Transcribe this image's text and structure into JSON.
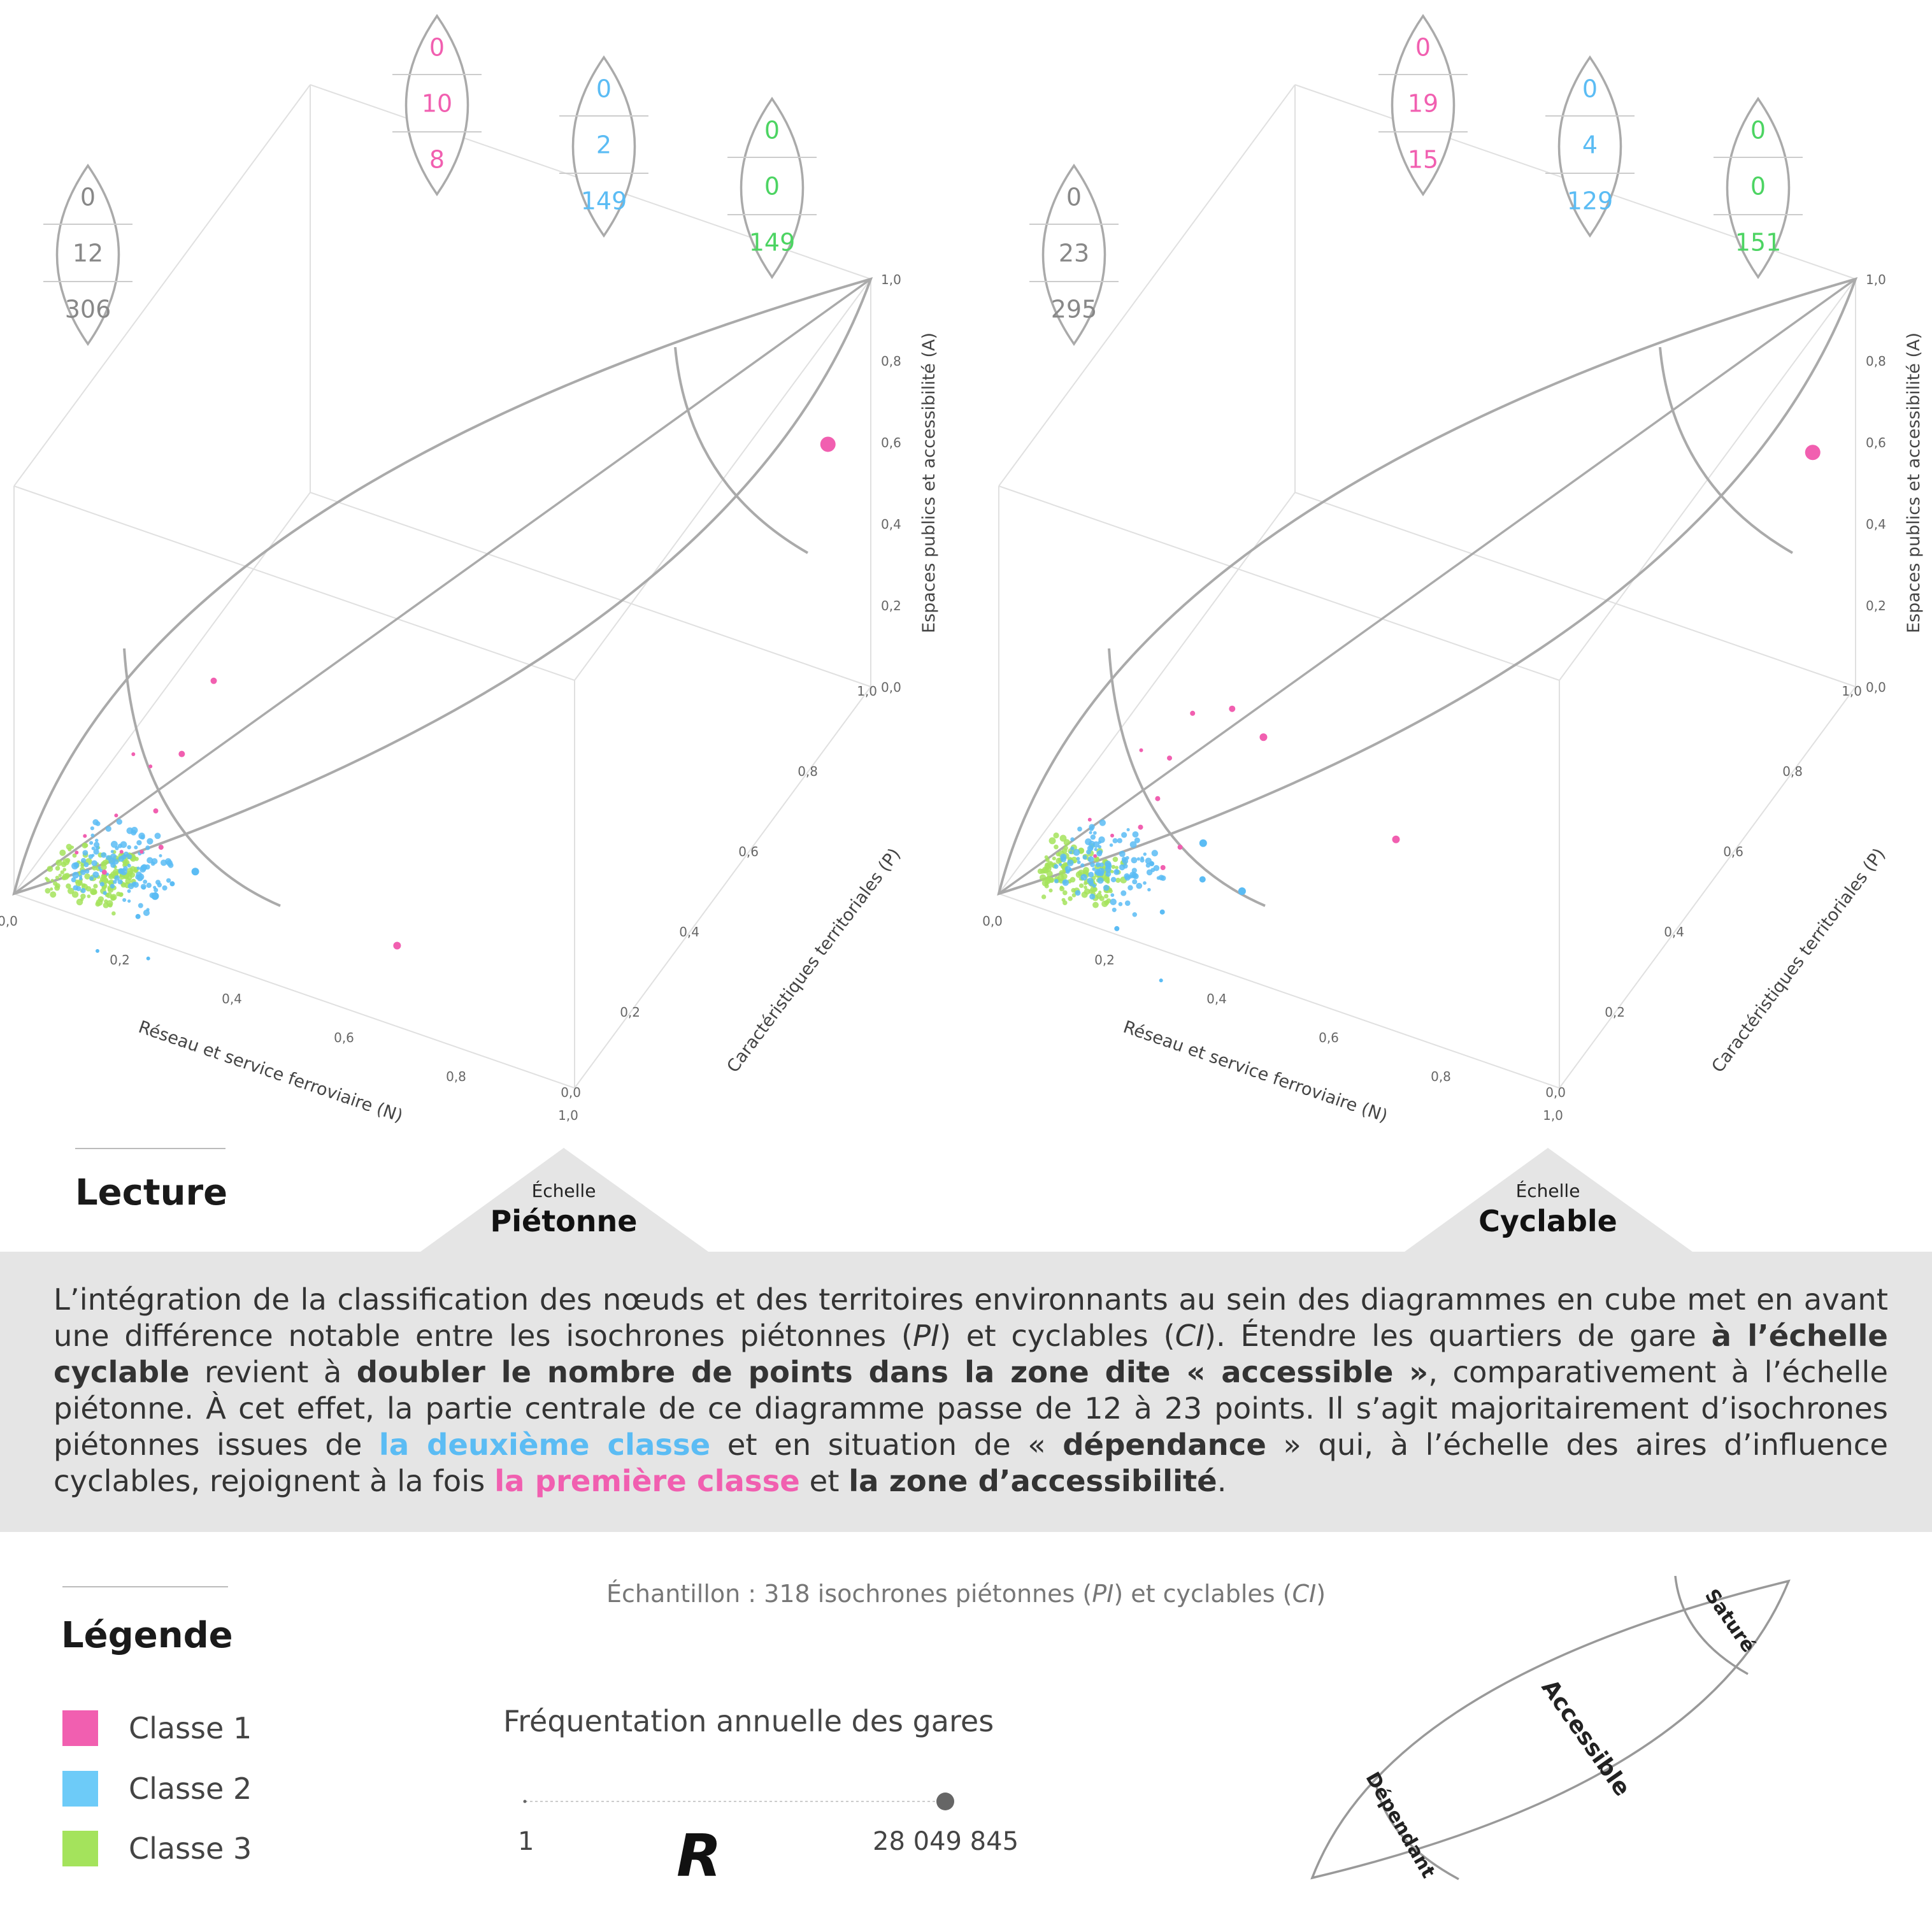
{
  "chart_data": [
    {
      "type": "scatter",
      "scale_label": "Échelle",
      "scale_name": "Piétonne",
      "x_axis": {
        "title": "Réseau et service ferroviaire (N)",
        "ticks": [
          "0,0",
          "0,2",
          "0,4",
          "0,6",
          "0,8",
          "1,0"
        ],
        "range": [
          0,
          1
        ]
      },
      "y_axis": {
        "title": "Caractéristiques territoriales (P)",
        "ticks": [
          "0,0",
          "0,2",
          "0,4",
          "0,6",
          "0,8",
          "1,0"
        ],
        "range": [
          0,
          1
        ]
      },
      "z_axis": {
        "title": "Espaces publics et accessibilité (A)",
        "ticks": [
          "0,0",
          "0,2",
          "0,4",
          "0,6",
          "0,8",
          "1,0"
        ],
        "range": [
          0,
          1
        ]
      },
      "lens_counts": [
        {
          "zone": "all",
          "color": "#888888",
          "values": [
            "0",
            "12",
            "306"
          ]
        },
        {
          "zone": "classe-1",
          "color": "#f15fb0",
          "values": [
            "0",
            "10",
            "8"
          ]
        },
        {
          "zone": "classe-2",
          "color": "#5bbcf4",
          "values": [
            "0",
            "2",
            "149"
          ]
        },
        {
          "zone": "classe-3",
          "color": "#4cd462",
          "values": [
            "0",
            "0",
            "149"
          ]
        }
      ],
      "points": [
        {
          "n": 0.95,
          "p": 0.95,
          "a": 0.62,
          "cls": 1,
          "r": 12
        },
        {
          "n": 0.62,
          "p": 0.12,
          "a": 0.05,
          "cls": 1,
          "r": 6
        },
        {
          "n": 0.22,
          "p": 0.15,
          "a": 0.3,
          "cls": 1,
          "r": 5
        },
        {
          "n": 0.24,
          "p": 0.22,
          "a": 0.42,
          "cls": 1,
          "r": 5
        },
        {
          "n": 0.16,
          "p": 0.1,
          "a": 0.32,
          "cls": 1,
          "r": 3
        },
        {
          "n": 0.18,
          "p": 0.12,
          "a": 0.28,
          "cls": 1,
          "r": 3
        },
        {
          "n": 0.2,
          "p": 0.1,
          "a": 0.2,
          "cls": 1,
          "r": 4
        },
        {
          "n": 0.14,
          "p": 0.08,
          "a": 0.18,
          "cls": 1,
          "r": 3
        },
        {
          "n": 0.22,
          "p": 0.08,
          "a": 0.14,
          "cls": 1,
          "r": 4
        },
        {
          "n": 0.16,
          "p": 0.06,
          "a": 0.12,
          "cls": 1,
          "r": 3
        },
        {
          "n": 0.1,
          "p": 0.05,
          "a": 0.14,
          "cls": 1,
          "r": 3
        },
        {
          "n": 0.14,
          "p": 0.04,
          "a": 0.08,
          "cls": 1,
          "r": 4
        },
        {
          "n": 0.18,
          "p": 0.09,
          "a": 0.1,
          "cls": 1,
          "r": 3
        },
        {
          "n": 0.08,
          "p": 0.06,
          "a": 0.08,
          "cls": 1,
          "r": 3
        },
        {
          "n": 0.26,
          "p": 0.12,
          "a": 0.06,
          "cls": 2,
          "r": 6
        },
        {
          "n": 0.22,
          "p": 0.06,
          "a": 0.04,
          "cls": 2,
          "r": 6
        },
        {
          "n": 0.2,
          "p": 0.04,
          "a": 0.0,
          "cls": 2,
          "r": 4
        },
        {
          "n": 0.25,
          "p": -0.02,
          "a": -0.02,
          "cls": 2,
          "r": 3
        },
        {
          "n": 0.17,
          "p": -0.04,
          "a": -0.02,
          "cls": 2,
          "r": 3
        },
        {
          "n": 0.24,
          "p": 0.08,
          "a": 0.06,
          "cls": 2,
          "r": 4
        }
      ]
    },
    {
      "type": "scatter",
      "scale_label": "Échelle",
      "scale_name": "Cyclable",
      "x_axis": {
        "title": "Réseau et service ferroviaire (N)",
        "ticks": [
          "0,0",
          "0,2",
          "0,4",
          "0,6",
          "0,8",
          "1,0"
        ],
        "range": [
          0,
          1
        ]
      },
      "y_axis": {
        "title": "Caractéristiques territoriales (P)",
        "ticks": [
          "0,0",
          "0,2",
          "0,4",
          "0,6",
          "0,8",
          "1,0"
        ],
        "range": [
          0,
          1
        ]
      },
      "z_axis": {
        "title": "Espaces publics et accessibilité (A)",
        "ticks": [
          "0,0",
          "0,2",
          "0,4",
          "0,6",
          "0,8",
          "1,0"
        ],
        "range": [
          0,
          1
        ]
      },
      "lens_counts": [
        {
          "zone": "all",
          "color": "#888888",
          "values": [
            "0",
            "23",
            "295"
          ]
        },
        {
          "zone": "classe-1",
          "color": "#f15fb0",
          "values": [
            "0",
            "19",
            "15"
          ]
        },
        {
          "zone": "classe-2",
          "color": "#5bbcf4",
          "values": [
            "0",
            "4",
            "129"
          ]
        },
        {
          "zone": "classe-3",
          "color": "#4cd462",
          "values": [
            "0",
            "0",
            "151"
          ]
        }
      ],
      "points": [
        {
          "n": 0.95,
          "p": 0.95,
          "a": 0.6,
          "cls": 1,
          "r": 12
        },
        {
          "n": 0.55,
          "p": 0.3,
          "a": 0.1,
          "cls": 1,
          "r": 6
        },
        {
          "n": 0.3,
          "p": 0.22,
          "a": 0.38,
          "cls": 1,
          "r": 5
        },
        {
          "n": 0.34,
          "p": 0.25,
          "a": 0.3,
          "cls": 1,
          "r": 6
        },
        {
          "n": 0.24,
          "p": 0.2,
          "a": 0.36,
          "cls": 1,
          "r": 4
        },
        {
          "n": 0.22,
          "p": 0.16,
          "a": 0.28,
          "cls": 1,
          "r": 4
        },
        {
          "n": 0.18,
          "p": 0.14,
          "a": 0.3,
          "cls": 1,
          "r": 3
        },
        {
          "n": 0.22,
          "p": 0.12,
          "a": 0.22,
          "cls": 1,
          "r": 4
        },
        {
          "n": 0.2,
          "p": 0.1,
          "a": 0.16,
          "cls": 1,
          "r": 4
        },
        {
          "n": 0.26,
          "p": 0.12,
          "a": 0.12,
          "cls": 1,
          "r": 4
        },
        {
          "n": 0.16,
          "p": 0.08,
          "a": 0.14,
          "cls": 1,
          "r": 3
        },
        {
          "n": 0.14,
          "p": 0.06,
          "a": 0.1,
          "cls": 1,
          "r": 3
        },
        {
          "n": 0.12,
          "p": 0.08,
          "a": 0.16,
          "cls": 1,
          "r": 3
        },
        {
          "n": 0.24,
          "p": 0.1,
          "a": 0.08,
          "cls": 1,
          "r": 4
        },
        {
          "n": 0.28,
          "p": 0.16,
          "a": 0.1,
          "cls": 2,
          "r": 6
        },
        {
          "n": 0.36,
          "p": 0.14,
          "a": 0.04,
          "cls": 2,
          "r": 6
        },
        {
          "n": 0.3,
          "p": 0.12,
          "a": 0.06,
          "cls": 2,
          "r": 5
        },
        {
          "n": 0.26,
          "p": 0.06,
          "a": 0.02,
          "cls": 2,
          "r": 4
        },
        {
          "n": 0.2,
          "p": 0.02,
          "a": -0.01,
          "cls": 2,
          "r": 4
        },
        {
          "n": 0.3,
          "p": -0.02,
          "a": -0.05,
          "cls": 2,
          "r": 3
        },
        {
          "n": 0.22,
          "p": 0.1,
          "a": 0.08,
          "cls": 2,
          "r": 4
        }
      ]
    }
  ],
  "colors": {
    "classe_1": "#f15fb0",
    "classe_2": "#5bbcf4",
    "classe_3": "#a4e35c",
    "classe_3_text": "#4cd462",
    "grey": "#888888"
  },
  "lecture": {
    "title": "Lecture",
    "p1": "L’intégration de la classification des nœuds et des territoires environnants au sein des diagrammes en cube met en avant une différence notable entre les isochrones piétonnes (",
    "pi": "PI",
    "p2": ") et cyclables (",
    "ci": "CI",
    "p3": "). Étendre les quartiers de gare ",
    "b1": "à l’échelle cyclable",
    "p4": " revient à ",
    "b2": "doubler le nombre de points dans la zone dite « accessible »",
    "p5": ", comparativement à l’échelle piétonne. À cet effet, la partie centrale de ce diagramme passe de 12 à 23 points. Il s’agit majoritairement d’isochrones piétonnes issues de ",
    "c2": "la deuxième classe",
    "p6": " et en situation de « ",
    "b3": "dépendance",
    "p7": " » qui, à l’échelle des aires d’influence cyclables, rejoignent à la fois ",
    "c1": "la première classe",
    "p8": " et ",
    "b4": "la zone d’accessibilité",
    "p9": "."
  },
  "legend": {
    "title": "Légende",
    "items": [
      {
        "label": "Classe 1",
        "color": "#f15fb0"
      },
      {
        "label": "Classe 2",
        "color": "#5bbcf4"
      },
      {
        "label": "Classe 3",
        "color": "#a4e35c"
      }
    ],
    "sample_prefix": "Échantillon : 318 isochrones piétonnes (",
    "sample_pi": "PI",
    "sample_mid": ") et cyclables (",
    "sample_ci": "CI",
    "sample_suffix": ")",
    "frequency_title": "Fréquentation annuelle des gares",
    "frequency_min": "1",
    "frequency_max": "28 049 845",
    "frequency_letter": "R",
    "zones": {
      "sature": "Saturé",
      "accessible": "Accessible",
      "dependant": "Dépendant"
    }
  }
}
